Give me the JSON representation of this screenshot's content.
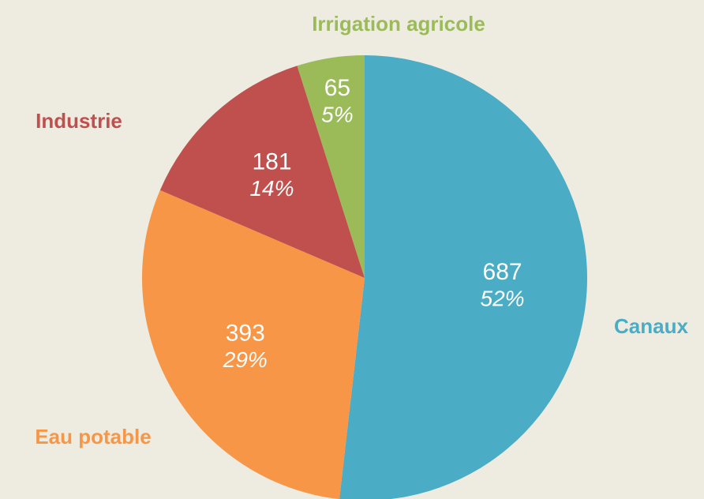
{
  "chart_data": {
    "type": "pie",
    "categories": [
      "Canaux",
      "Eau potable",
      "Industrie",
      "Irrigation agricole"
    ],
    "values": [
      687,
      393,
      181,
      65
    ],
    "percent_labels": [
      "52%",
      "29%",
      "14%",
      "5%"
    ],
    "colors": [
      "#4bacc6",
      "#f79646",
      "#c0504d",
      "#9bbb59"
    ]
  }
}
